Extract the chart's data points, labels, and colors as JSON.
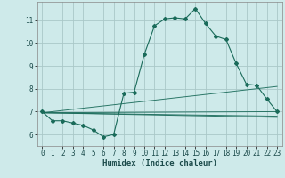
{
  "xlabel": "Humidex (Indice chaleur)",
  "background_color": "#ceeaea",
  "grid_color": "#aac8c8",
  "line_color": "#1a6b5a",
  "xlim": [
    -0.5,
    23.5
  ],
  "ylim": [
    5.5,
    11.8
  ],
  "xticks": [
    0,
    1,
    2,
    3,
    4,
    5,
    6,
    7,
    8,
    9,
    10,
    11,
    12,
    13,
    14,
    15,
    16,
    17,
    18,
    19,
    20,
    21,
    22,
    23
  ],
  "yticks": [
    6,
    7,
    8,
    9,
    10,
    11
  ],
  "series": [
    [
      0,
      7.0
    ],
    [
      1,
      6.6
    ],
    [
      2,
      6.6
    ],
    [
      3,
      6.5
    ],
    [
      4,
      6.4
    ],
    [
      5,
      6.2
    ],
    [
      6,
      5.9
    ],
    [
      7,
      6.0
    ],
    [
      8,
      7.8
    ],
    [
      9,
      7.85
    ],
    [
      10,
      9.5
    ],
    [
      11,
      10.75
    ],
    [
      12,
      11.05
    ],
    [
      13,
      11.1
    ],
    [
      14,
      11.05
    ],
    [
      15,
      11.5
    ],
    [
      16,
      10.85
    ],
    [
      17,
      10.3
    ],
    [
      18,
      10.15
    ],
    [
      19,
      9.1
    ],
    [
      20,
      8.2
    ],
    [
      21,
      8.15
    ],
    [
      22,
      7.55
    ],
    [
      23,
      7.0
    ]
  ],
  "trend_lines": [
    {
      "x": [
        0,
        23
      ],
      "y": [
        6.95,
        8.1
      ]
    },
    {
      "x": [
        0,
        23
      ],
      "y": [
        6.95,
        7.0
      ]
    },
    {
      "x": [
        0,
        23
      ],
      "y": [
        6.95,
        6.8
      ]
    },
    {
      "x": [
        0,
        23
      ],
      "y": [
        6.95,
        6.75
      ]
    }
  ]
}
